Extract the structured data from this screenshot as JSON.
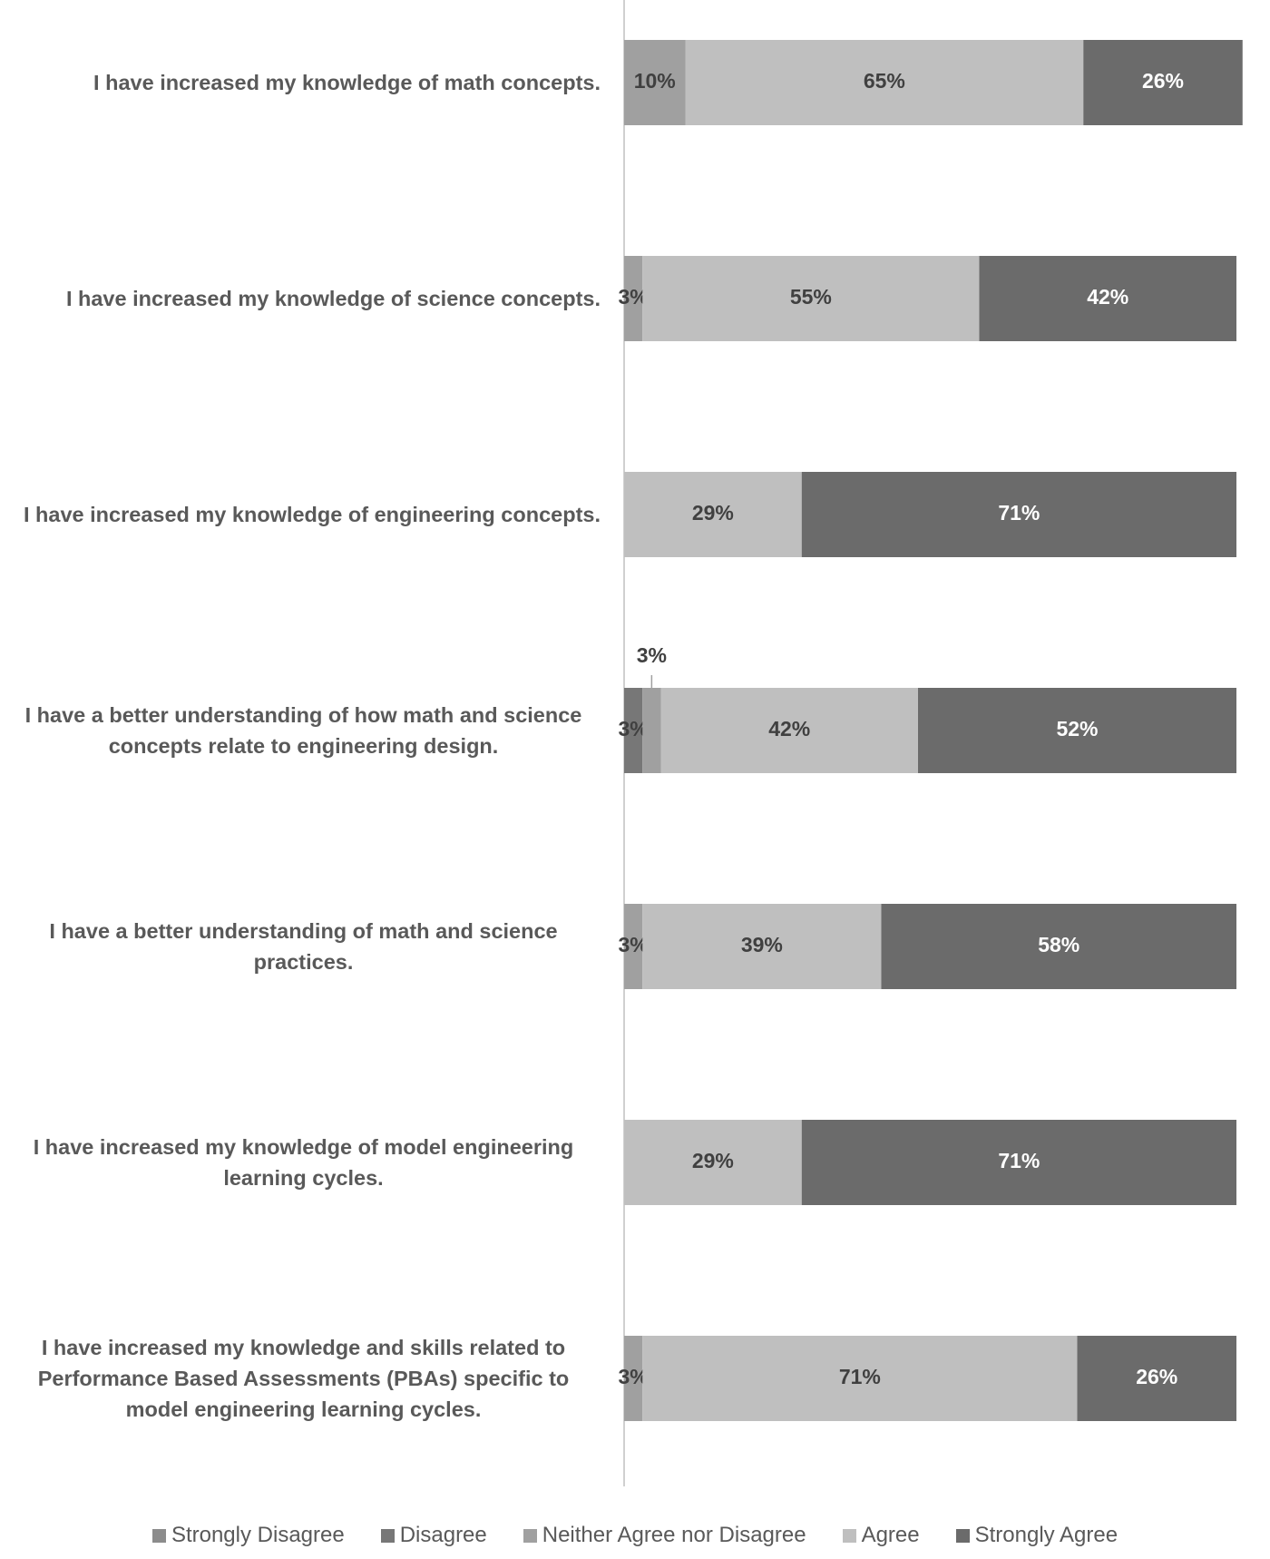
{
  "chart_data": {
    "type": "stacked-bar-horizontal",
    "categories": [
      "I have increased my knowledge of math concepts.",
      "I have increased my knowledge of science concepts.",
      "I have increased my knowledge of engineering concepts.",
      "I have a better understanding of how math and science concepts relate to engineering design.",
      "I have a better understanding of math and science practices.",
      "I have increased my knowledge of model engineering learning cycles.",
      "I have increased my knowledge and skills related to Performance Based Assessments (PBAs) specific to model engineering learning cycles."
    ],
    "xlim": [
      0,
      100
    ],
    "legend": "bottom",
    "series": [
      {
        "name": "Strongly Disagree",
        "color": "#8c8c8c",
        "values": [
          null,
          null,
          null,
          null,
          null,
          null,
          null
        ],
        "value_labels": [
          null,
          null,
          null,
          null,
          null,
          null,
          null
        ]
      },
      {
        "name": "Disagree",
        "color": "#777777",
        "values": [
          null,
          null,
          null,
          3,
          null,
          null,
          null
        ],
        "value_labels": [
          null,
          null,
          null,
          "3%",
          null,
          null,
          null
        ]
      },
      {
        "name": "Neither Agree nor Disagree",
        "color": "#a0a0a0",
        "values": [
          10,
          3,
          null,
          3,
          3,
          null,
          3
        ],
        "value_labels": [
          "10%",
          "3%",
          null,
          "3%",
          "3%",
          null,
          "3%"
        ]
      },
      {
        "name": "Agree",
        "color": "#bfbfbf",
        "values": [
          65,
          55,
          29,
          42,
          39,
          29,
          71
        ],
        "value_labels": [
          "65%",
          "55%",
          "29%",
          "42%",
          "39%",
          "29%",
          "71%"
        ]
      },
      {
        "name": "Strongly Agree",
        "color": "#6b6b6b",
        "values": [
          26,
          42,
          71,
          52,
          58,
          71,
          26
        ],
        "value_labels": [
          "26%",
          "42%",
          "71%",
          "52%",
          "58%",
          "71%",
          "26%"
        ]
      }
    ]
  }
}
